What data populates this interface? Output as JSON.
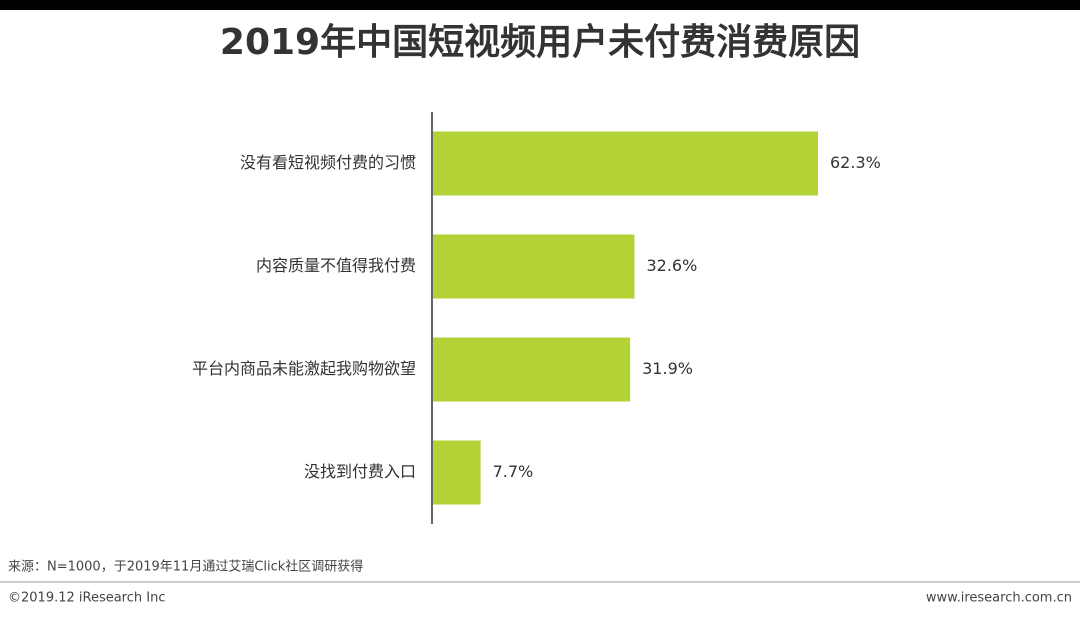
{
  "chart_data": {
    "type": "bar",
    "orientation": "horizontal",
    "title": "2019年中国短视频用户未付费消费原因",
    "categories": [
      "没有看短视频付费的习惯",
      "内容质量不值得我付费",
      "平台内商品未能激起我购物欲望",
      "没找到付费入口"
    ],
    "values": [
      62.3,
      32.6,
      31.9,
      7.7
    ],
    "value_labels": [
      "62.3%",
      "32.6%",
      "31.9%",
      "7.7%"
    ],
    "color": "#b2d235"
  },
  "source": "来源：N=1000，于2019年11月通过艾瑞Click社区调研获得",
  "footer": {
    "copyright": "©2019.12 iResearch Inc",
    "website": "www.iresearch.com.cn"
  }
}
